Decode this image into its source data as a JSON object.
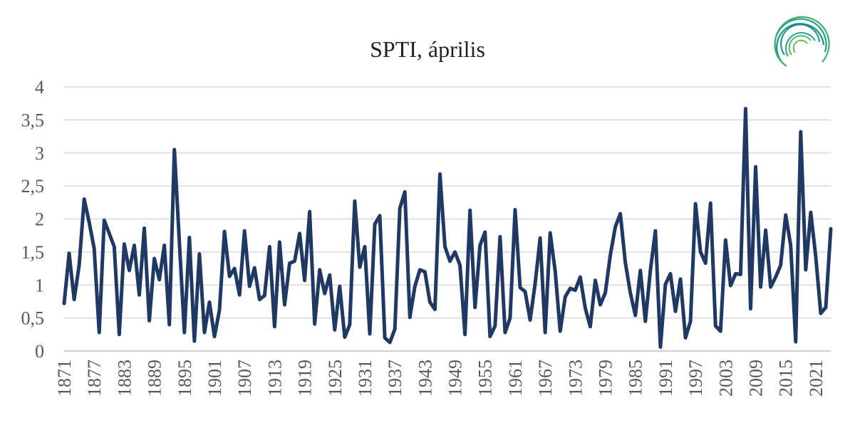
{
  "chart_data": {
    "type": "line",
    "title": "SPTI, április",
    "xlabel": "",
    "ylabel": "",
    "ylim": [
      0,
      4
    ],
    "y_ticks": [
      "0",
      "0,5",
      "1",
      "1,5",
      "2",
      "2,5",
      "3",
      "3,5",
      "4"
    ],
    "x_tick_labels": [
      "1871",
      "1877",
      "1883",
      "1889",
      "1895",
      "1901",
      "1907",
      "1913",
      "1919",
      "1925",
      "1931",
      "1937",
      "1943",
      "1949",
      "1955",
      "1961",
      "1967",
      "1973",
      "1979",
      "1985",
      "1991",
      "1997",
      "2003",
      "2009",
      "2015",
      "2021"
    ],
    "x_start": 1871,
    "x_end": 2024,
    "grid": true,
    "legend": "none",
    "line_color": "#203864",
    "series": [
      {
        "name": "",
        "values": [
          0.72,
          1.48,
          0.78,
          1.3,
          2.3,
          1.95,
          1.55,
          0.28,
          1.98,
          1.78,
          1.58,
          0.25,
          1.62,
          1.22,
          1.6,
          0.85,
          1.86,
          0.46,
          1.4,
          1.08,
          1.6,
          0.4,
          3.05,
          1.65,
          0.28,
          1.72,
          0.15,
          1.47,
          0.28,
          0.74,
          0.22,
          0.62,
          1.81,
          1.13,
          1.25,
          0.85,
          1.82,
          0.98,
          1.26,
          0.78,
          0.84,
          1.58,
          0.37,
          1.65,
          0.7,
          1.33,
          1.36,
          1.78,
          1.07,
          2.11,
          0.41,
          1.23,
          0.87,
          1.15,
          0.32,
          0.98,
          0.21,
          0.4,
          2.27,
          1.27,
          1.58,
          0.26,
          1.92,
          2.05,
          0.2,
          0.13,
          0.33,
          2.16,
          2.41,
          0.51,
          0.98,
          1.23,
          1.2,
          0.74,
          0.63,
          2.68,
          1.58,
          1.36,
          1.5,
          1.3,
          0.25,
          2.13,
          0.66,
          1.6,
          1.8,
          0.22,
          0.38,
          1.73,
          0.28,
          0.5,
          2.14,
          0.96,
          0.9,
          0.47,
          1.02,
          1.71,
          0.28,
          1.79,
          1.21,
          0.3,
          0.82,
          0.95,
          0.92,
          1.12,
          0.65,
          0.37,
          1.07,
          0.7,
          0.88,
          1.45,
          1.88,
          2.08,
          1.34,
          0.88,
          0.54,
          1.22,
          0.45,
          1.22,
          1.82,
          0.06,
          1.01,
          1.17,
          0.6,
          1.09,
          0.2,
          0.45,
          2.23,
          1.5,
          1.33,
          2.24,
          0.38,
          0.3,
          1.68,
          0.99,
          1.17,
          1.16,
          3.67,
          0.64,
          2.79,
          0.97,
          1.83,
          0.97,
          1.12,
          1.3,
          2.06,
          1.6,
          0.14,
          3.32,
          1.23,
          2.1,
          1.43,
          0.57,
          0.66,
          1.85
        ]
      }
    ]
  },
  "logo": {
    "icon": "swirl-logo-icon",
    "color_a": "#1a8f8a",
    "color_b": "#6cc04a"
  }
}
